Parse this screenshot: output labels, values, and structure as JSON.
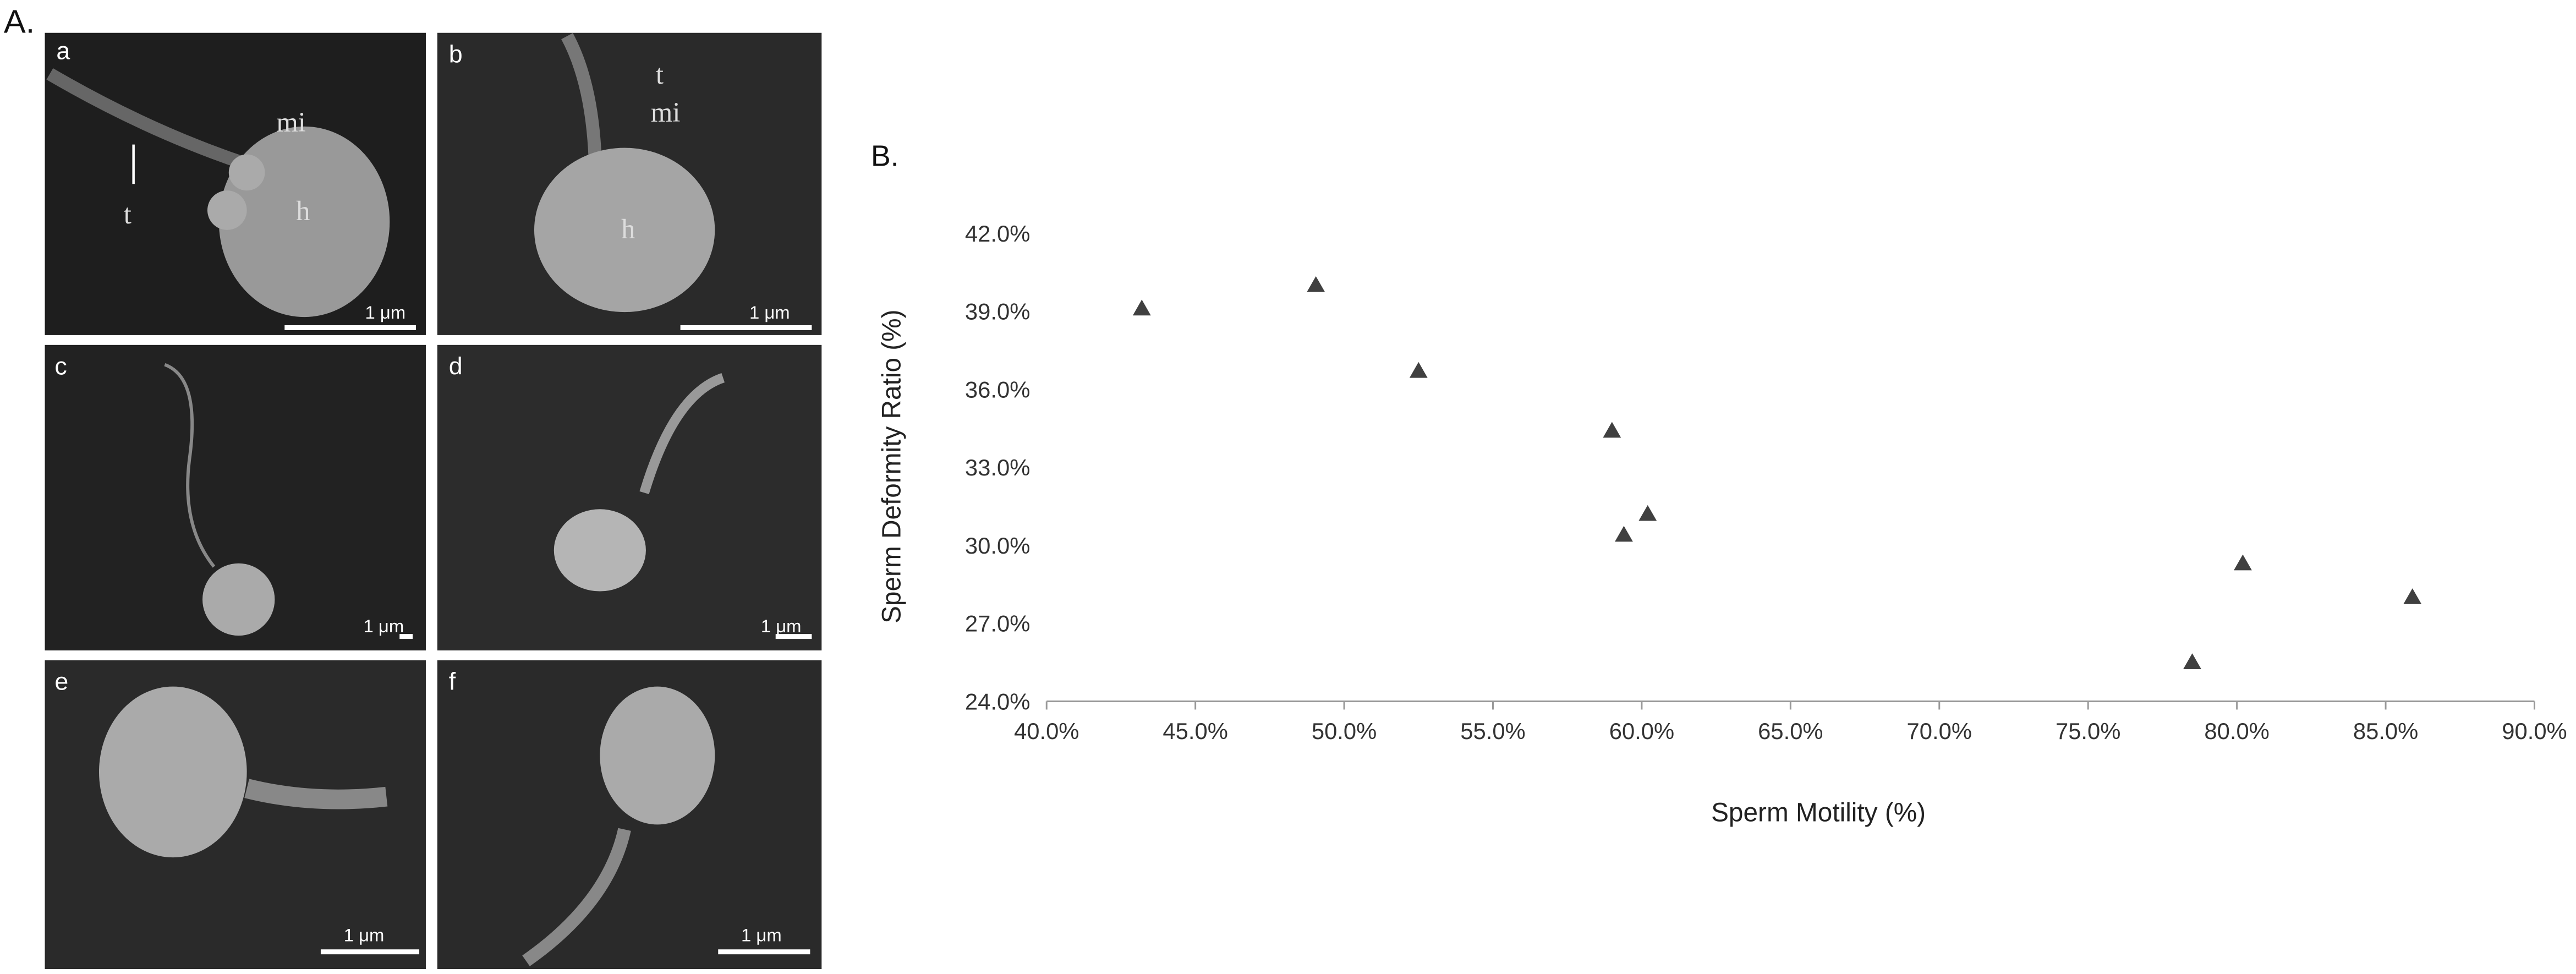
{
  "panel_a": {
    "label": "A.",
    "images": [
      {
        "label": "a",
        "annotations": [
          "mi",
          "t",
          "h"
        ],
        "scale_bar": "1 μm"
      },
      {
        "label": "b",
        "annotations": [
          "t",
          "mi",
          "h"
        ],
        "scale_bar": "1 μm"
      },
      {
        "label": "c",
        "scale_bar": "1 μm"
      },
      {
        "label": "d",
        "scale_bar": "1 μm"
      },
      {
        "label": "e",
        "scale_bar": "1 μm"
      },
      {
        "label": "f",
        "scale_bar": "1 μm"
      }
    ]
  },
  "chart_data": {
    "type": "scatter",
    "panel_label": "B.",
    "x_label": "Sperm Motility (%)",
    "y_label": "Sperm Deformity Ratio (%)",
    "x": [
      43.2,
      49.05,
      52.5,
      59.0,
      59.4,
      60.2,
      78.5,
      80.2,
      85.9
    ],
    "values": [
      39.1,
      40.0,
      36.7,
      34.4,
      30.4,
      31.2,
      25.5,
      29.3,
      28.0
    ],
    "color": "#404040",
    "marker": "triangle",
    "xlim": [
      40,
      90
    ],
    "xticks": [
      {
        "value": 40,
        "label": "40.0%"
      },
      {
        "value": 45,
        "label": "45.0%"
      },
      {
        "value": 50,
        "label": "50.0%"
      },
      {
        "value": 55,
        "label": "55.0%"
      },
      {
        "value": 60,
        "label": "60.0%"
      },
      {
        "value": 65,
        "label": "65.0%"
      },
      {
        "value": 70,
        "label": "70.0%"
      },
      {
        "value": 75,
        "label": "75.0%"
      },
      {
        "value": 80,
        "label": "80.0%"
      },
      {
        "value": 85,
        "label": "85.0%"
      },
      {
        "value": 90,
        "label": "90.0%"
      }
    ],
    "ylim": [
      24,
      42
    ],
    "yticks": [
      {
        "value": 24,
        "label": "24.0%"
      },
      {
        "value": 27,
        "label": "27.0%"
      },
      {
        "value": 30,
        "label": "30.0%"
      },
      {
        "value": 33,
        "label": "33.0%"
      },
      {
        "value": 36,
        "label": "36.0%"
      },
      {
        "value": 39,
        "label": "39.0%"
      },
      {
        "value": 42,
        "label": "42.0%"
      }
    ]
  }
}
